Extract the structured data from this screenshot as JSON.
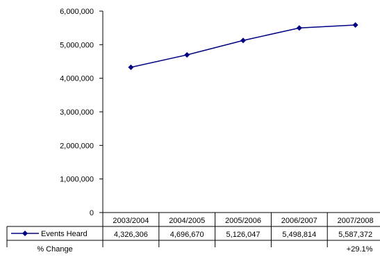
{
  "chart_data": {
    "type": "line",
    "categories": [
      "2003/2004",
      "2004/2005",
      "2005/2006",
      "2006/2007",
      "2007/2008"
    ],
    "series": [
      {
        "name": "Events Heard",
        "values": [
          4326306,
          4696670,
          5126047,
          5498814,
          5587372
        ],
        "value_labels": [
          "4,326,306",
          "4,696,670",
          "5,126,047",
          "5,498,814",
          "5,587,372"
        ],
        "color": "#000080"
      }
    ],
    "y_ticks": [
      "6,000,000",
      "5,000,000",
      "4,000,000",
      "3,000,000",
      "2,000,000",
      "1,000,000",
      "0"
    ],
    "ylim": [
      0,
      6000000
    ],
    "grid": false,
    "legend": "data-table",
    "table": {
      "change_label": "% Change",
      "change_values": [
        "",
        "",
        "",
        "",
        "+29.1%"
      ]
    }
  }
}
